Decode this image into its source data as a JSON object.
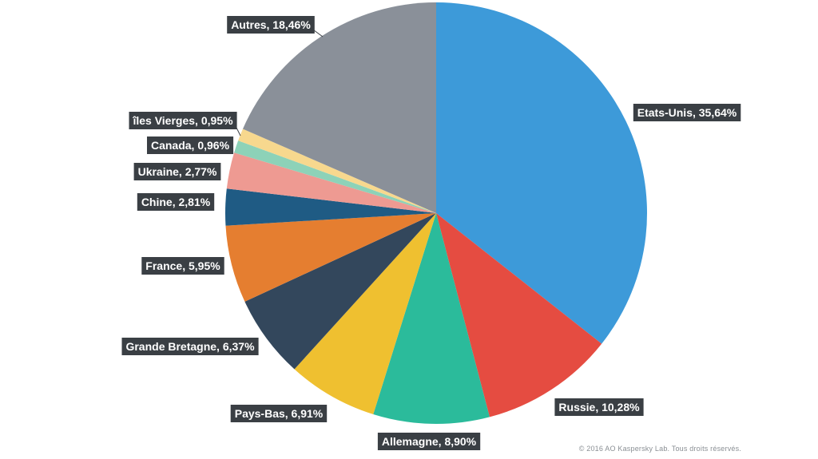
{
  "chart_data": {
    "type": "pie",
    "start": "top",
    "direction": "clockwise",
    "slices": [
      {
        "label": "Etats-Unis, 35,64%",
        "value": 35.64,
        "color": "#3d9ad9"
      },
      {
        "label": "Russie, 10,28%",
        "value": 10.28,
        "color": "#e54c41"
      },
      {
        "label": "Allemagne, 8,90%",
        "value": 8.9,
        "color": "#2bbb9b"
      },
      {
        "label": "Pays-Bas, 6,91%",
        "value": 6.91,
        "color": "#efc030"
      },
      {
        "label": "Grande Bretagne, 6,37%",
        "value": 6.37,
        "color": "#33475c"
      },
      {
        "label": "France, 5,95%",
        "value": 5.95,
        "color": "#e57e30"
      },
      {
        "label": "Chine, 2,81%",
        "value": 2.81,
        "color": "#1f5b84"
      },
      {
        "label": "Ukraine, 2,77%",
        "value": 2.77,
        "color": "#ee9a92"
      },
      {
        "label": "Canada, 0,96%",
        "value": 0.96,
        "color": "#8dd2b8"
      },
      {
        "label": "îles Vierges, 0,95%",
        "value": 0.95,
        "color": "#f7d88e"
      },
      {
        "label": "Autres, 18,46%",
        "value": 18.46,
        "color": "#8a9099"
      }
    ]
  },
  "footer": {
    "copyright": "© 2016 AO Kaspersky Lab. Tous droits réservés."
  }
}
